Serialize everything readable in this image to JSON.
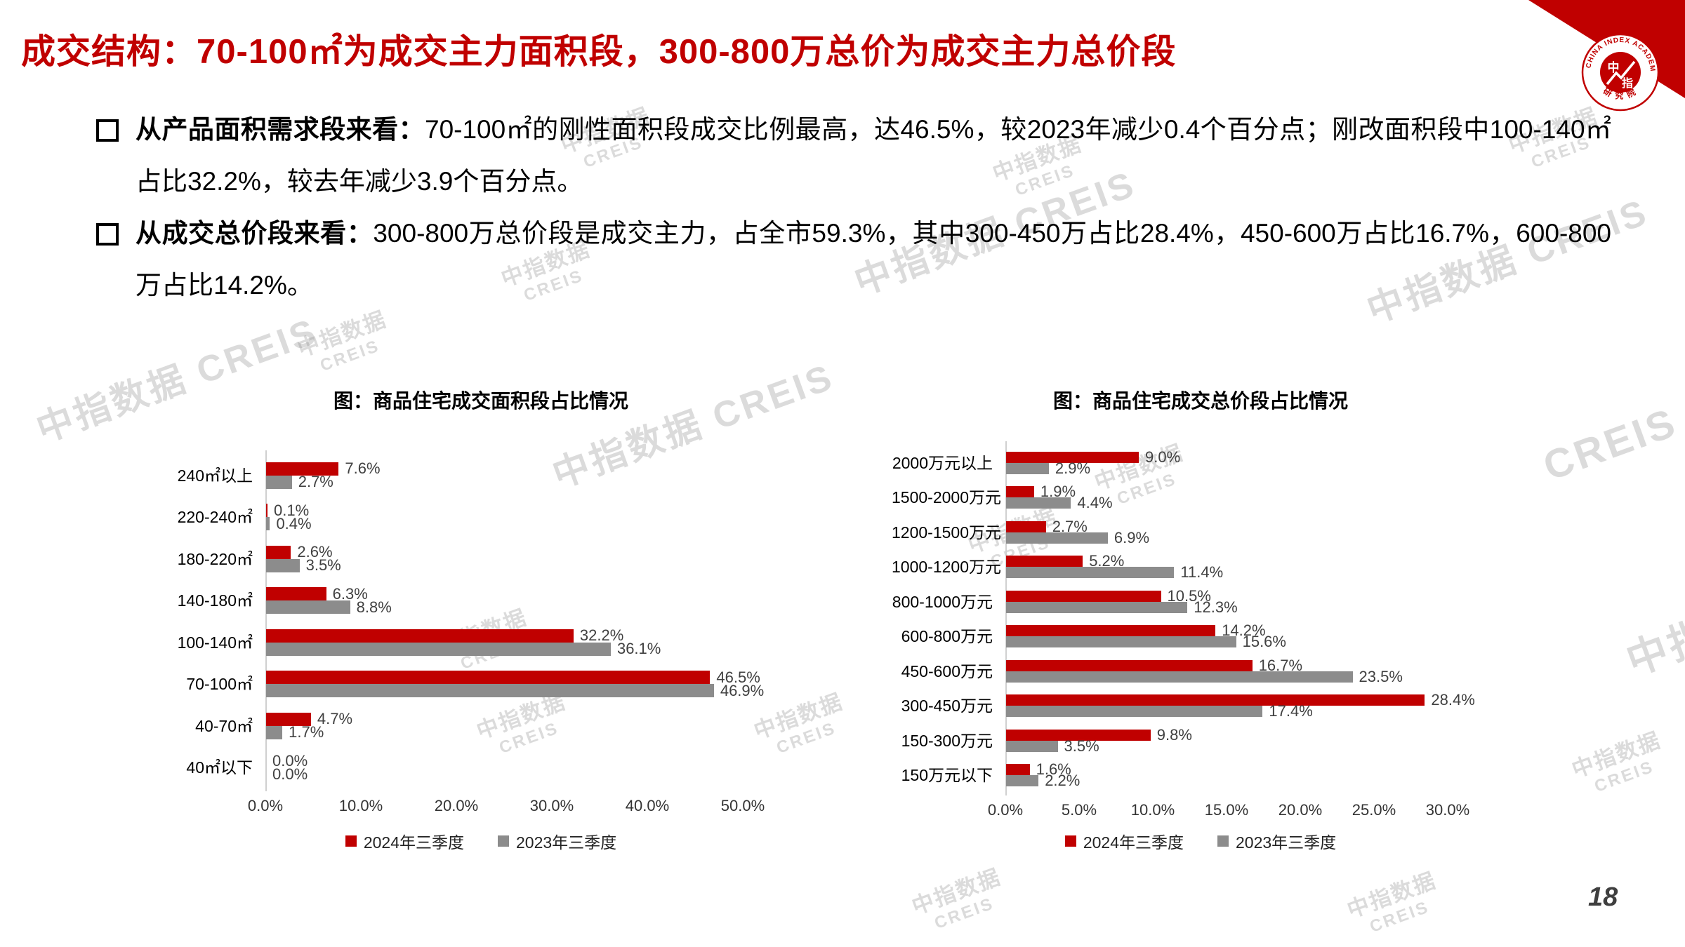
{
  "page": {
    "number": "18"
  },
  "header": {
    "title": "成交结构：70-100㎡为成交主力面积段，300-800万总价为成交主力总价段"
  },
  "bullets": [
    {
      "lead": "从产品面积需求段来看：",
      "text": "70-100㎡的刚性面积段成交比例最高，达46.5%，较2023年减少0.4个百分点；刚改面积段中100-140㎡占比32.2%，较去年减少3.9个百分点。"
    },
    {
      "lead": "从成交总价段来看：",
      "text": "300-800万总价段是成交主力，占全市59.3%，其中300-450万占比28.4%，450-600万占比16.7%，600-800万占比14.2%。"
    }
  ],
  "colors": {
    "accent_red": "#C00000",
    "series_2024": "#C00000",
    "series_2023": "#8C8C8C",
    "value_label_gray": "#404040"
  },
  "logo": {
    "ring_text_top": "CHINA INDEX ACADEMY",
    "ring_text_bottom": "研 究 院",
    "center_cn_1": "中",
    "center_cn_2": "指"
  },
  "watermark": {
    "cn": "中指数据",
    "en": "CREIS",
    "line": "中指数据 CREIS"
  },
  "chart_data": [
    {
      "type": "bar",
      "orientation": "horizontal",
      "title": "图：商品住宅成交面积段占比情况",
      "categories": [
        "240㎡以上",
        "220-240㎡",
        "180-220㎡",
        "140-180㎡",
        "100-140㎡",
        "70-100㎡",
        "40-70㎡",
        "40㎡以下"
      ],
      "series": [
        {
          "name": "2024年三季度",
          "color": "#C00000",
          "values": [
            7.6,
            0.1,
            2.6,
            6.3,
            32.2,
            46.5,
            4.7,
            0.0
          ]
        },
        {
          "name": "2023年三季度",
          "color": "#8C8C8C",
          "values": [
            2.7,
            0.4,
            3.5,
            8.8,
            36.1,
            46.9,
            1.7,
            0.0
          ]
        }
      ],
      "xlim": [
        0,
        50
      ],
      "x_ticks": [
        "0.0%",
        "10.0%",
        "20.0%",
        "30.0%",
        "40.0%",
        "50.0%"
      ],
      "value_format": "percent1",
      "legend_position": "bottom",
      "grid": false
    },
    {
      "type": "bar",
      "orientation": "horizontal",
      "title": "图：商品住宅成交总价段占比情况",
      "categories": [
        "2000万元以上",
        "1500-2000万元",
        "1200-1500万元",
        "1000-1200万元",
        "800-1000万元",
        "600-800万元",
        "450-600万元",
        "300-450万元",
        "150-300万元",
        "150万元以下"
      ],
      "series": [
        {
          "name": "2024年三季度",
          "color": "#C00000",
          "values": [
            9.0,
            1.9,
            2.7,
            5.2,
            10.5,
            14.2,
            16.7,
            28.4,
            9.8,
            1.6
          ]
        },
        {
          "name": "2023年三季度",
          "color": "#8C8C8C",
          "values": [
            2.9,
            4.4,
            6.9,
            11.4,
            12.3,
            15.6,
            23.5,
            17.4,
            3.5,
            2.2
          ]
        }
      ],
      "xlim": [
        0,
        30
      ],
      "x_ticks": [
        "0.0%",
        "5.0%",
        "10.0%",
        "15.0%",
        "20.0%",
        "25.0%",
        "30.0%"
      ],
      "value_format": "percent1",
      "legend_position": "bottom",
      "grid": false
    }
  ]
}
